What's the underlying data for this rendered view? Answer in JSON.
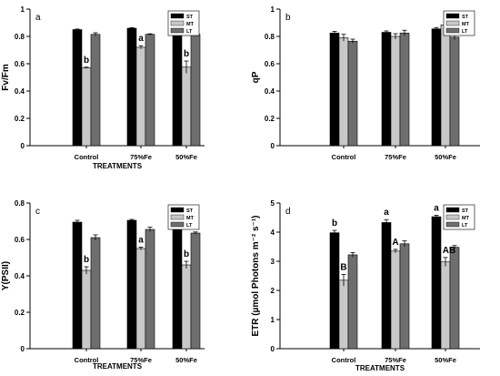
{
  "chart_data": [
    {
      "type": "bar",
      "panel_label": "a",
      "categories": [
        "Control",
        "75%Fe",
        "50%Fe"
      ],
      "xlabel": "TREATMENTS",
      "ylabel": "Fv/Fm",
      "ylim": [
        0,
        1
      ],
      "yticks": [
        "0",
        "0.2",
        "0.4",
        "0.6",
        "0.8",
        "1"
      ],
      "legend_position": "top-right",
      "series": [
        {
          "name": "ST",
          "color": "#000000",
          "values": [
            0.85,
            0.86,
            0.86
          ],
          "errors": [
            0.004,
            0.004,
            0.004
          ]
        },
        {
          "name": "MT",
          "color": "#c8c8c8",
          "values": [
            0.57,
            0.72,
            0.575
          ],
          "errors": [
            0.005,
            0.012,
            0.045
          ]
        },
        {
          "name": "LT",
          "color": "#6e6e6e",
          "values": [
            0.815,
            0.815,
            0.815
          ],
          "errors": [
            0.012,
            0.004,
            0.012
          ]
        }
      ],
      "annotations": [
        {
          "category": 0,
          "series": 1,
          "text": "b"
        },
        {
          "category": 1,
          "series": 1,
          "text": "a"
        },
        {
          "category": 2,
          "series": 1,
          "text": "b"
        }
      ]
    },
    {
      "type": "bar",
      "panel_label": "b",
      "categories": [
        "Control",
        "75%Fe",
        "50%Fe"
      ],
      "xlabel": "",
      "ylabel": "qP",
      "ylim": [
        0,
        1
      ],
      "yticks": [
        "0",
        "0.2",
        "0.4",
        "0.6",
        "0.8",
        "1"
      ],
      "legend_position": "top-right",
      "series": [
        {
          "name": "ST",
          "color": "#000000",
          "values": [
            0.825,
            0.83,
            0.855
          ],
          "errors": [
            0.012,
            0.01,
            0.01
          ]
        },
        {
          "name": "MT",
          "color": "#c8c8c8",
          "values": [
            0.79,
            0.8,
            0.885
          ],
          "errors": [
            0.025,
            0.02,
            0.02
          ]
        },
        {
          "name": "LT",
          "color": "#6e6e6e",
          "values": [
            0.765,
            0.825,
            0.795
          ],
          "errors": [
            0.015,
            0.02,
            0.02
          ]
        }
      ],
      "annotations": []
    },
    {
      "type": "bar",
      "panel_label": "c",
      "categories": [
        "Control",
        "75%Fe",
        "50%Fe"
      ],
      "xlabel": "TREATMENTS",
      "ylabel": "Y(PSII)",
      "ylim": [
        0,
        0.8
      ],
      "yticks": [
        "0",
        "0.2",
        "0.4",
        "0.6",
        "0.8"
      ],
      "legend_position": "top-right",
      "series": [
        {
          "name": "ST",
          "color": "#000000",
          "values": [
            0.695,
            0.705,
            0.725
          ],
          "errors": [
            0.01,
            0.005,
            0.008
          ]
        },
        {
          "name": "MT",
          "color": "#c8c8c8",
          "values": [
            0.43,
            0.55,
            0.46
          ],
          "errors": [
            0.02,
            0.008,
            0.02
          ]
        },
        {
          "name": "LT",
          "color": "#6e6e6e",
          "values": [
            0.61,
            0.655,
            0.635
          ],
          "errors": [
            0.015,
            0.012,
            0.006
          ]
        }
      ],
      "annotations": [
        {
          "category": 0,
          "series": 1,
          "text": "b"
        },
        {
          "category": 1,
          "series": 1,
          "text": "a"
        },
        {
          "category": 2,
          "series": 1,
          "text": "b"
        }
      ]
    },
    {
      "type": "bar",
      "panel_label": "d",
      "categories": [
        "Control",
        "75%Fe",
        "50%Fe"
      ],
      "xlabel": "TREATMENTS",
      "ylabel": "ETR (µmol Photons m⁻² s⁻¹)",
      "ylim": [
        0,
        5
      ],
      "yticks": [
        "0",
        "1",
        "2",
        "3",
        "4",
        "5"
      ],
      "legend_position": "top-right",
      "series": [
        {
          "name": "ST",
          "color": "#000000",
          "values": [
            3.98,
            4.33,
            4.53
          ],
          "errors": [
            0.08,
            0.1,
            0.05
          ]
        },
        {
          "name": "MT",
          "color": "#c8c8c8",
          "values": [
            2.35,
            3.35,
            2.98
          ],
          "errors": [
            0.2,
            0.06,
            0.15
          ]
        },
        {
          "name": "LT",
          "color": "#6e6e6e",
          "values": [
            3.22,
            3.6,
            3.48
          ],
          "errors": [
            0.08,
            0.1,
            0.06
          ]
        }
      ],
      "annotations": [
        {
          "category": 0,
          "series": 0,
          "text": "b"
        },
        {
          "category": 1,
          "series": 0,
          "text": "a"
        },
        {
          "category": 2,
          "series": 0,
          "text": "a"
        },
        {
          "category": 0,
          "series": 1,
          "text": "B"
        },
        {
          "category": 1,
          "series": 1,
          "text": "A"
        },
        {
          "category": 2,
          "series": 1,
          "text": "AB"
        }
      ]
    }
  ]
}
